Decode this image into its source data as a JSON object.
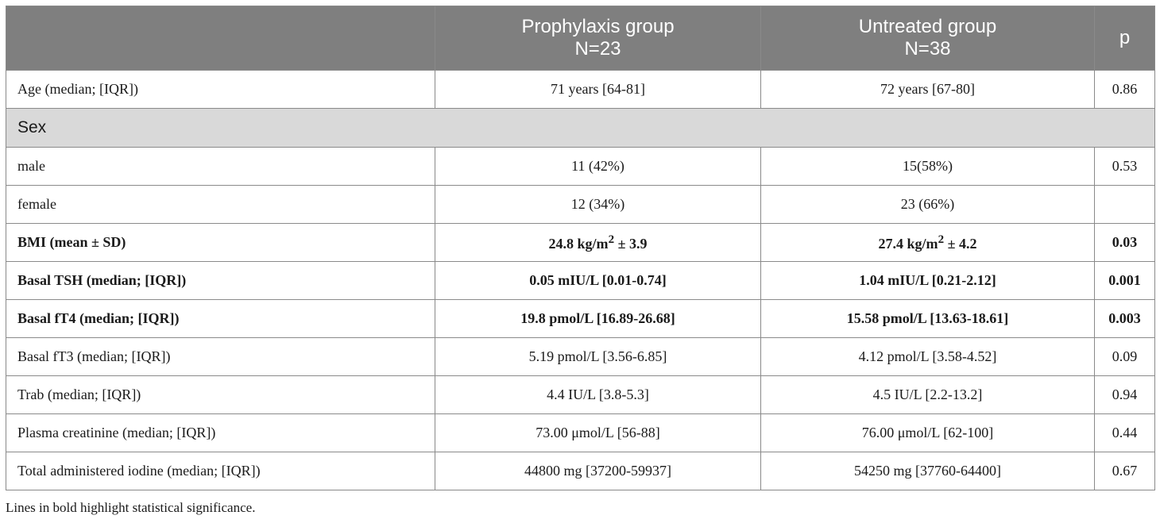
{
  "header": {
    "col0": "",
    "col1_line1": "Prophylaxis group",
    "col1_line2": "N=23",
    "col2_line1": "Untreated group",
    "col2_line2": "N=38",
    "col3": "p"
  },
  "rows": {
    "age": {
      "label": "Age (median; [IQR])",
      "prophylaxis": "71 years [64-81]",
      "untreated": "72 years [67-80]",
      "p": "0.86"
    },
    "sex": {
      "label": "Sex"
    },
    "male": {
      "label": "male",
      "prophylaxis": "11 (42%)",
      "untreated": "15(58%)",
      "p": "0.53"
    },
    "female": {
      "label": "female",
      "prophylaxis": "12 (34%)",
      "untreated": "23 (66%)",
      "p": ""
    },
    "bmi": {
      "label": "BMI (mean ± SD)",
      "prophylaxis_value": "24.8 kg/m",
      "prophylaxis_sd": " ± 3.9",
      "untreated_value": "27.4 kg/m",
      "untreated_sd": " ± 4.2",
      "sup": "2",
      "p": "0.03"
    },
    "tsh": {
      "label": "Basal TSH (median; [IQR])",
      "prophylaxis": "0.05 mIU/L [0.01-0.74]",
      "untreated": "1.04 mIU/L [0.21-2.12]",
      "p": "0.001"
    },
    "ft4": {
      "label": "Basal fT4 (median; [IQR])",
      "prophylaxis": "19.8 pmol/L [16.89-26.68]",
      "untreated": "15.58 pmol/L [13.63-18.61]",
      "p": "0.003"
    },
    "ft3": {
      "label": "Basal fT3 (median; [IQR])",
      "prophylaxis": "5.19 pmol/L [3.56-6.85]",
      "untreated": "4.12 pmol/L [3.58-4.52]",
      "p": "0.09"
    },
    "trab": {
      "label": "Trab (median; [IQR])",
      "prophylaxis": "4.4 IU/L [3.8-5.3]",
      "untreated": "4.5 IU/L [2.2-13.2]",
      "p": "0.94"
    },
    "creatinine": {
      "label": "Plasma creatinine (median; [IQR])",
      "prophylaxis": "73.00 μmol/L [56-88]",
      "untreated": "76.00 μmol/L [62-100]",
      "p": "0.44"
    },
    "iodine": {
      "label": "Total administered iodine (median; [IQR])",
      "prophylaxis": "44800 mg [37200-59937]",
      "untreated": "54250 mg [37760-64400]",
      "p": "0.67"
    }
  },
  "footnote": "Lines in bold highlight statistical significance."
}
